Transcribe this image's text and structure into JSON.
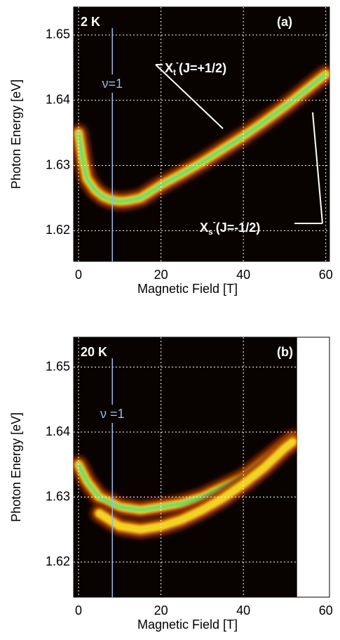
{
  "chart_data": [
    {
      "type": "line",
      "panel_label": "(a)",
      "temperature": "2 K",
      "x_label": "Magnetic Field [T]",
      "y_label": "Photon Energy [eV]",
      "x": [
        0,
        1,
        2,
        4,
        6,
        8,
        10,
        12,
        15,
        20,
        25,
        30,
        35,
        40,
        45,
        50,
        55,
        60
      ],
      "series": [
        {
          "color": "#2fd48c",
          "values": [
            1.635,
            1.631,
            1.628,
            1.6262,
            1.6252,
            1.6247,
            1.6245,
            1.6246,
            1.625,
            1.627,
            1.6287,
            1.6305,
            1.6325,
            1.6345,
            1.6367,
            1.639,
            1.6415,
            1.644
          ]
        }
      ],
      "vline": {
        "x": 8.2,
        "label": "ν=1"
      },
      "annotations": [
        {
          "base": "X",
          "sub": "t",
          "sup": "-",
          "rest": "(J=+1/2)"
        },
        {
          "base": "X",
          "sub": "s",
          "sup": "-",
          "rest": "(J=-1/2)"
        }
      ],
      "xlim": [
        -1.2,
        60.9
      ],
      "ylim": [
        1.6153,
        1.6543
      ],
      "xticks": [
        0,
        20,
        40,
        60
      ],
      "yticks": [
        1.62,
        1.63,
        1.64,
        1.65
      ],
      "grid": true
    },
    {
      "type": "line",
      "panel_label": "(b)",
      "temperature": "20 K",
      "x_label": "Magnetic Field [T]",
      "y_label": "Photon Energy [eV]",
      "x": [
        0,
        2,
        5,
        10,
        15,
        20,
        25,
        30,
        35,
        40,
        45,
        50,
        52
      ],
      "series": [
        {
          "color": "#2fd48c",
          "values": [
            1.635,
            1.6325,
            1.63,
            1.6285,
            1.628,
            1.6285,
            1.629,
            1.63,
            1.6315,
            1.633,
            1.6355,
            1.638,
            1.639
          ]
        },
        {
          "color": "#e8c820",
          "values": [
            null,
            null,
            1.6275,
            1.6255,
            1.625,
            1.6255,
            1.6265,
            1.628,
            1.6298,
            1.632,
            1.6345,
            1.6375,
            1.6385
          ]
        }
      ],
      "vline": {
        "x": 8.2,
        "label": "ν =1"
      },
      "xlim": [
        -1.2,
        60.9
      ],
      "ylim": [
        1.6146,
        1.6546
      ],
      "xticks": [
        0,
        20,
        40,
        60
      ],
      "yticks": [
        1.62,
        1.63,
        1.64,
        1.65
      ],
      "grid": true
    }
  ]
}
